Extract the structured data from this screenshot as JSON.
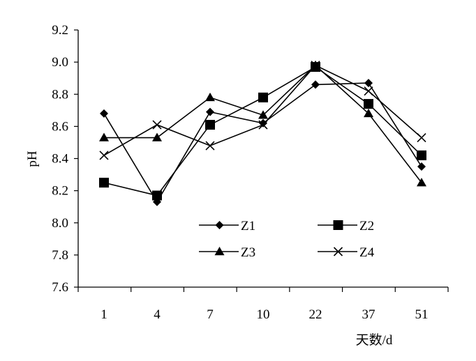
{
  "chart_data": {
    "type": "line",
    "title": "",
    "xlabel": "天数/d",
    "ylabel": "pH",
    "ylim": [
      7.6,
      9.2
    ],
    "yticks": [
      "7.6",
      "7.8",
      "8.0",
      "8.2",
      "8.4",
      "8.6",
      "8.8",
      "9.0",
      "9.2"
    ],
    "categories": [
      "1",
      "4",
      "7",
      "10",
      "22",
      "37",
      "51"
    ],
    "grid": false,
    "legend_position": "bottom-center",
    "series": [
      {
        "name": "Z1",
        "marker": "diamond",
        "values": [
          8.68,
          8.13,
          8.69,
          8.62,
          8.86,
          8.87,
          8.35
        ]
      },
      {
        "name": "Z2",
        "marker": "square",
        "values": [
          8.25,
          8.17,
          8.61,
          8.78,
          8.97,
          8.74,
          8.42
        ]
      },
      {
        "name": "Z3",
        "marker": "triangle",
        "values": [
          8.53,
          8.53,
          8.78,
          8.67,
          8.98,
          8.68,
          8.25
        ]
      },
      {
        "name": "Z4",
        "marker": "cross",
        "values": [
          8.42,
          8.61,
          8.48,
          8.61,
          8.98,
          8.82,
          8.53
        ]
      }
    ]
  }
}
